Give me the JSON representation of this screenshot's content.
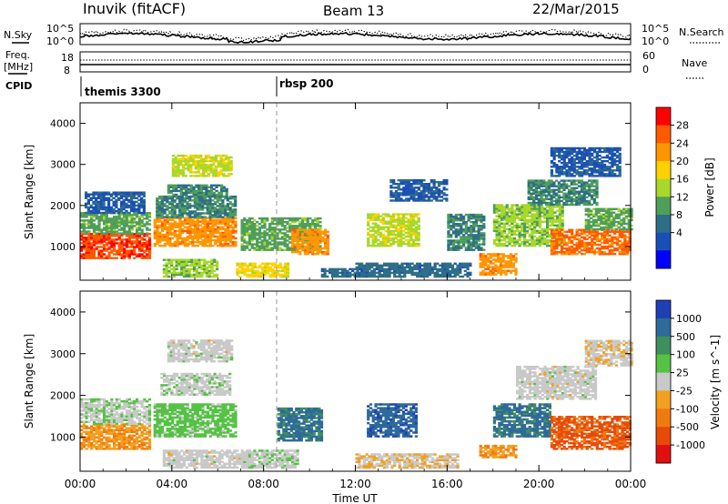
{
  "header": {
    "station": "Inuvik (fitACF)",
    "beam": "Beam 13",
    "date": "22/Mar/2015"
  },
  "top_panel": {
    "left_label_top": "N.Sky",
    "left_tick_high": "10^5",
    "left_tick_low": "10^0",
    "right_tick_high": "10^5",
    "right_tick_low": "10^0",
    "right_label": "N.Search",
    "freq_label_line1": "Freq.",
    "freq_label_line2": "[MHz]",
    "freq_tick_high": "18",
    "freq_tick_low": "8",
    "nave_tick_high": "60",
    "nave_tick_low": "0",
    "nave_label": "Nave",
    "cpid_label": "CPID",
    "cpid_segments": [
      {
        "name": "themis 3300",
        "start_hour": 0
      },
      {
        "name": "rbsp 200",
        "start_hour": 8.6
      }
    ]
  },
  "power_colorbar": {
    "label": "Power [dB]",
    "ticks": [
      "28",
      "24",
      "20",
      "16",
      "12",
      "8",
      "4"
    ],
    "colors": [
      "#ff0000",
      "#ff5a00",
      "#ff9600",
      "#ffd200",
      "#a8d82a",
      "#4f9e5a",
      "#2f6e86",
      "#1a4fb8",
      "#0000ff"
    ]
  },
  "velocity_colorbar": {
    "label": "Velocity [m s^-1]",
    "ticks": [
      "1000",
      "500",
      "100",
      "25",
      "-25",
      "-100",
      "-500",
      "-1000"
    ],
    "colors": [
      "#1f3fb5",
      "#2e6a9a",
      "#3f8f5c",
      "#55c244",
      "#c9c9c9",
      "#f2a020",
      "#f07a10",
      "#e84a0a",
      "#e01010"
    ]
  },
  "chart_data": [
    {
      "type": "heatmap",
      "name": "power",
      "xlabel": "",
      "ylabel": "Slant Range [km]",
      "x_ticks": [
        "00:00",
        "04:00",
        "08:00",
        "12:00",
        "16:00",
        "20:00",
        "00:00"
      ],
      "xlim": [
        0,
        24
      ],
      "ylim": [
        180,
        4500
      ],
      "y_ticks": [
        1000,
        2000,
        3000,
        4000
      ],
      "colorbar_range": [
        0,
        30
      ],
      "blobs": [
        {
          "t0": 0.0,
          "t1": 3.0,
          "r0": 700,
          "r1": 1300,
          "v": 26
        },
        {
          "t0": 0.0,
          "t1": 3.0,
          "r0": 1300,
          "r1": 1800,
          "v": 12
        },
        {
          "t0": 0.2,
          "t1": 2.8,
          "r0": 1800,
          "r1": 2300,
          "v": 6
        },
        {
          "t0": 3.2,
          "t1": 6.8,
          "r0": 1000,
          "r1": 1700,
          "v": 22
        },
        {
          "t0": 3.3,
          "t1": 6.8,
          "r0": 1700,
          "r1": 2200,
          "v": 10
        },
        {
          "t0": 3.8,
          "t1": 6.4,
          "r0": 2200,
          "r1": 2500,
          "v": 10
        },
        {
          "t0": 4.0,
          "t1": 6.6,
          "r0": 2700,
          "r1": 3200,
          "v": 16
        },
        {
          "t0": 3.6,
          "t1": 6.0,
          "r0": 250,
          "r1": 700,
          "v": 14
        },
        {
          "t0": 6.8,
          "t1": 9.0,
          "r0": 250,
          "r1": 600,
          "v": 18
        },
        {
          "t0": 7.0,
          "t1": 10.5,
          "r0": 900,
          "r1": 1700,
          "v": 12
        },
        {
          "t0": 9.2,
          "t1": 10.8,
          "r0": 800,
          "r1": 1400,
          "v": 22
        },
        {
          "t0": 10.5,
          "t1": 12.5,
          "r0": 250,
          "r1": 450,
          "v": 8
        },
        {
          "t0": 12.5,
          "t1": 14.8,
          "r0": 1000,
          "r1": 1800,
          "v": 16
        },
        {
          "t0": 12.0,
          "t1": 17.0,
          "r0": 250,
          "r1": 600,
          "v": 8
        },
        {
          "t0": 13.5,
          "t1": 16.0,
          "r0": 2100,
          "r1": 2600,
          "v": 6
        },
        {
          "t0": 16.0,
          "t1": 17.6,
          "r0": 900,
          "r1": 1800,
          "v": 10
        },
        {
          "t0": 17.4,
          "t1": 19.0,
          "r0": 300,
          "r1": 800,
          "v": 22
        },
        {
          "t0": 18.0,
          "t1": 21.0,
          "r0": 1000,
          "r1": 2000,
          "v": 14
        },
        {
          "t0": 19.5,
          "t1": 22.5,
          "r0": 2000,
          "r1": 2600,
          "v": 10
        },
        {
          "t0": 20.5,
          "t1": 24.0,
          "r0": 800,
          "r1": 1400,
          "v": 24
        },
        {
          "t0": 22.0,
          "t1": 24.0,
          "r0": 1400,
          "r1": 1900,
          "v": 12
        },
        {
          "t0": 20.5,
          "t1": 23.5,
          "r0": 2700,
          "r1": 3400,
          "v": 6
        }
      ]
    },
    {
      "type": "heatmap",
      "name": "velocity",
      "xlabel": "Time UT",
      "ylabel": "Slant Range [km]",
      "x_ticks": [
        "00:00",
        "04:00",
        "08:00",
        "12:00",
        "16:00",
        "20:00",
        "00:00"
      ],
      "xlim": [
        0,
        24
      ],
      "ylim": [
        180,
        4500
      ],
      "y_ticks": [
        1000,
        2000,
        3000,
        4000
      ],
      "colorbar_range": [
        -1000,
        1000
      ],
      "blobs": [
        {
          "t0": 0.0,
          "t1": 3.0,
          "r0": 700,
          "r1": 1300,
          "v": -300
        },
        {
          "t0": 0.0,
          "t1": 3.0,
          "r0": 1300,
          "r1": 1900,
          "v": 60
        },
        {
          "t0": 3.2,
          "t1": 6.8,
          "r0": 1000,
          "r1": 1800,
          "v": 200
        },
        {
          "t0": 3.8,
          "t1": 6.6,
          "r0": 2800,
          "r1": 3300,
          "v": 0
        },
        {
          "t0": 3.5,
          "t1": 6.5,
          "r0": 2000,
          "r1": 2500,
          "v": 40
        },
        {
          "t0": 3.6,
          "t1": 7.5,
          "r0": 250,
          "r1": 700,
          "v": 0
        },
        {
          "t0": 7.0,
          "t1": 9.5,
          "r0": 250,
          "r1": 700,
          "v": 60
        },
        {
          "t0": 8.6,
          "t1": 10.5,
          "r0": 900,
          "r1": 1700,
          "v": 600
        },
        {
          "t0": 12.5,
          "t1": 14.6,
          "r0": 1000,
          "r1": 1800,
          "v": 700
        },
        {
          "t0": 12.0,
          "t1": 16.5,
          "r0": 250,
          "r1": 600,
          "v": -80
        },
        {
          "t0": 17.4,
          "t1": 19.0,
          "r0": 500,
          "r1": 800,
          "v": -300
        },
        {
          "t0": 18.0,
          "t1": 20.5,
          "r0": 1000,
          "r1": 1800,
          "v": 600
        },
        {
          "t0": 19.0,
          "t1": 22.5,
          "r0": 1900,
          "r1": 2700,
          "v": 0
        },
        {
          "t0": 20.5,
          "t1": 24.0,
          "r0": 700,
          "r1": 1500,
          "v": -600
        },
        {
          "t0": 22.0,
          "t1": 24.0,
          "r0": 2700,
          "r1": 3300,
          "v": -60
        }
      ]
    }
  ]
}
